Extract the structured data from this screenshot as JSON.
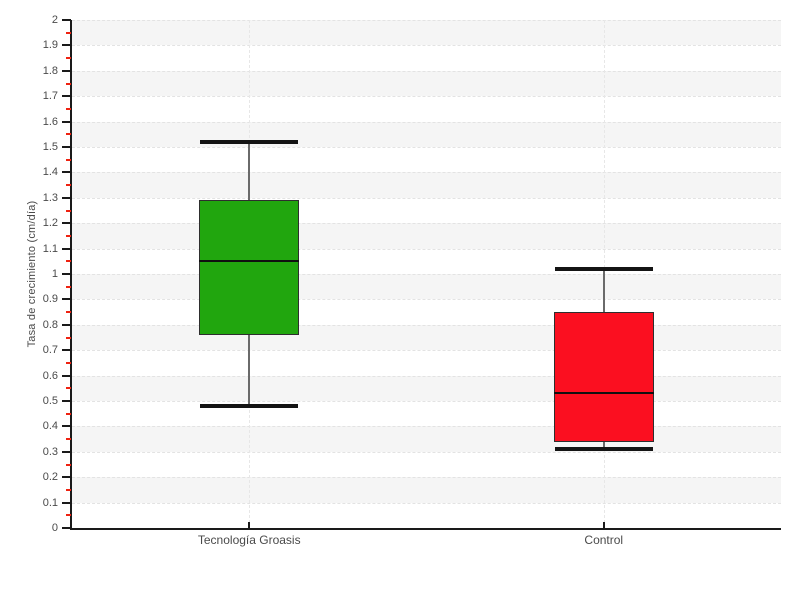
{
  "page": {
    "background": "#ffffff"
  },
  "chart_data": {
    "type": "boxplot",
    "title": "",
    "xlabel": "",
    "ylabel": "Tasa de crecimiento (cm/día)",
    "ylim": [
      0,
      2
    ],
    "y_major_step": 0.1,
    "y_minor_step": 0.05,
    "grid": true,
    "legend_position": "none",
    "alternating_bands": true,
    "categories": [
      "Tecnología Groasis",
      "Control"
    ],
    "series": [
      {
        "name": "Tecnología Groasis",
        "low": 0.48,
        "q1": 0.76,
        "median": 1.05,
        "q3": 1.29,
        "high": 1.52,
        "color": "#21a60e"
      },
      {
        "name": "Control",
        "low": 0.31,
        "q1": 0.34,
        "median": 0.53,
        "q3": 0.85,
        "high": 1.02,
        "color": "#fb0f20"
      }
    ]
  },
  "style": {
    "band_color": "#f5f5f5",
    "h_grid_color": "#e3e3e3",
    "v_grid_color": "#e7e7e7",
    "axis_color": "#1a1a1a",
    "major_tick_color": "#1a1a1a",
    "minor_tick_color": "#ee2211",
    "tick_label_color": "#4a4a4a",
    "whisker_color": "#6a6a6a",
    "whisker_cap_color": "#141414",
    "box_border_color": "#2e2e2e",
    "median_color": "#101010"
  }
}
